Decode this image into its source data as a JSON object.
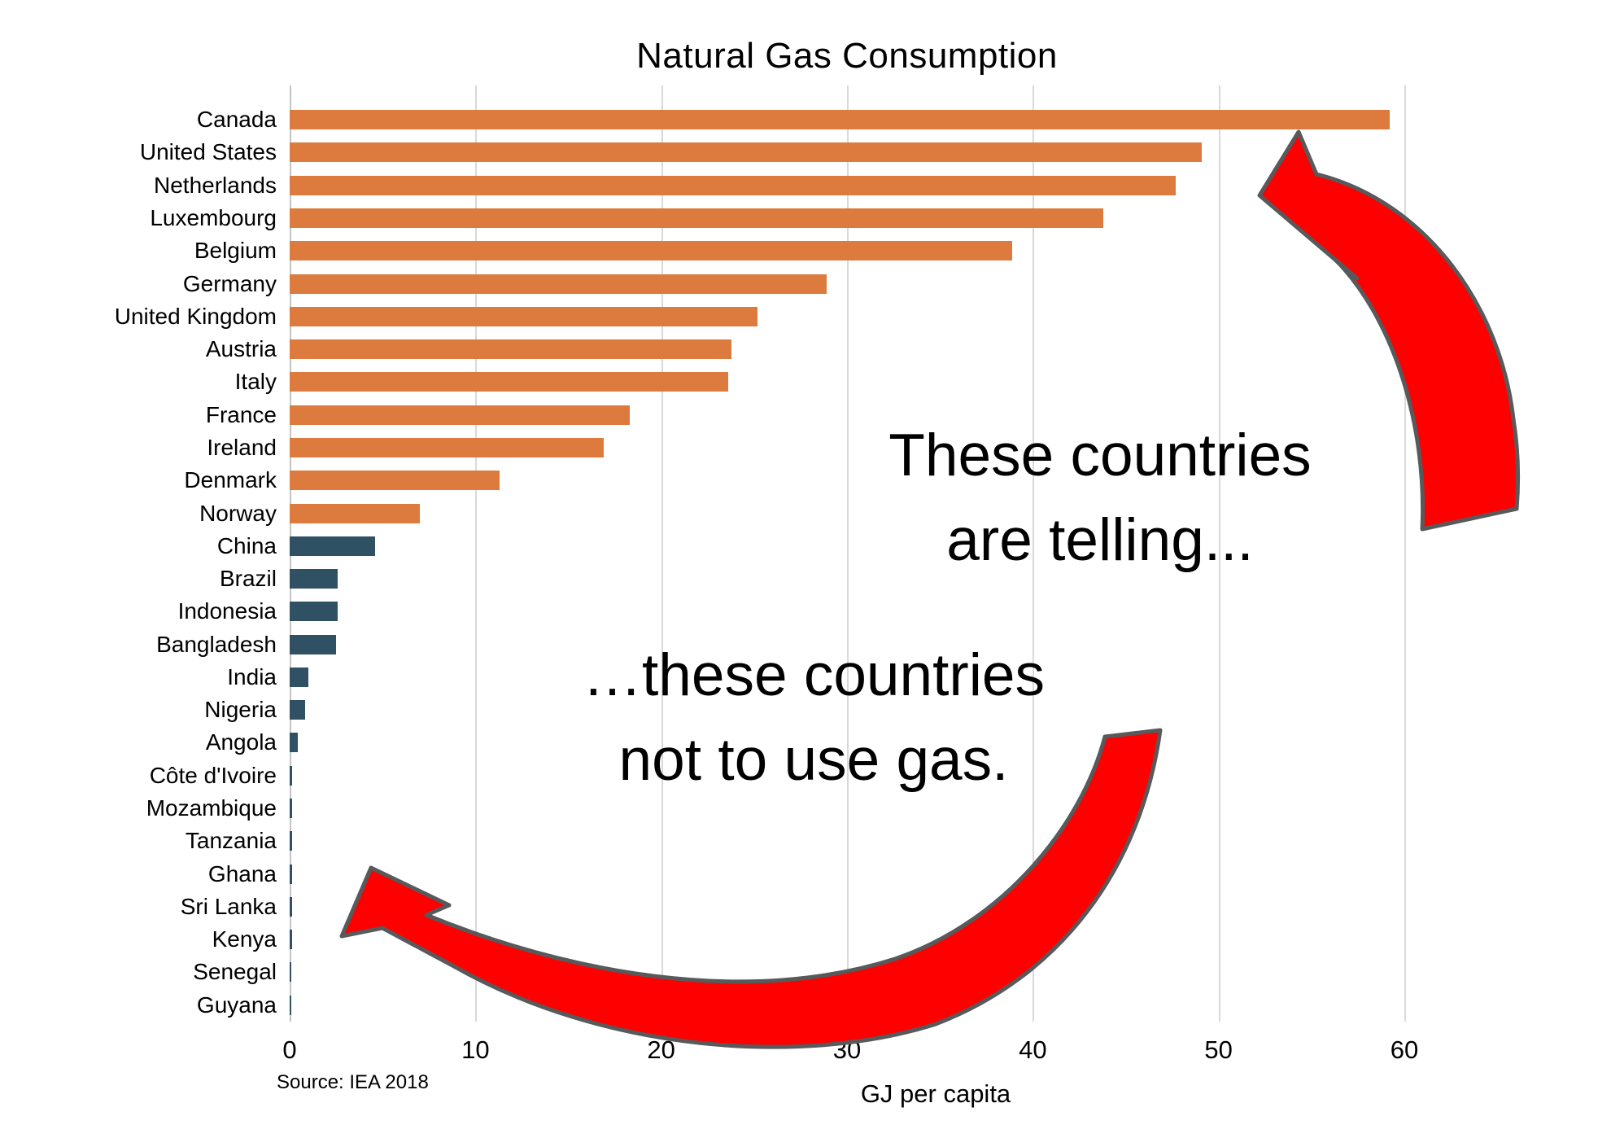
{
  "title": "Natural Gas Consumption",
  "xlabel": "GJ per capita",
  "source": "Source: IEA 2018",
  "annotations": {
    "top_line1": "These countries",
    "top_line2": "are telling...",
    "bottom_line1": "…these countries",
    "bottom_line2": "not to use gas."
  },
  "colors": {
    "advanced_bar": "#dd7b3e",
    "developing_bar": "#305064",
    "arrow_fill": "#ff0000",
    "arrow_outline": "#58595b",
    "gridline": "#d9d9d9"
  },
  "chart_data": {
    "type": "bar",
    "orientation": "horizontal",
    "title": "Natural Gas Consumption",
    "xlabel": "GJ per capita",
    "xlim": [
      0,
      60
    ],
    "xticks": [
      0,
      10,
      20,
      30,
      40,
      50,
      60
    ],
    "grid": "vertical",
    "unit": "GJ per capita",
    "items": [
      {
        "label": "Canada",
        "value": 59.2,
        "group": "advanced"
      },
      {
        "label": "United States",
        "value": 49.1,
        "group": "advanced"
      },
      {
        "label": "Netherlands",
        "value": 47.7,
        "group": "advanced"
      },
      {
        "label": "Luxembourg",
        "value": 43.8,
        "group": "advanced"
      },
      {
        "label": "Belgium",
        "value": 38.9,
        "group": "advanced"
      },
      {
        "label": "Germany",
        "value": 28.9,
        "group": "advanced"
      },
      {
        "label": "United Kingdom",
        "value": 25.2,
        "group": "advanced"
      },
      {
        "label": "Austria",
        "value": 23.8,
        "group": "advanced"
      },
      {
        "label": "Italy",
        "value": 23.6,
        "group": "advanced"
      },
      {
        "label": "France",
        "value": 18.3,
        "group": "advanced"
      },
      {
        "label": "Ireland",
        "value": 16.9,
        "group": "advanced"
      },
      {
        "label": "Denmark",
        "value": 11.3,
        "group": "advanced"
      },
      {
        "label": "Norway",
        "value": 7.0,
        "group": "advanced"
      },
      {
        "label": "China",
        "value": 4.6,
        "group": "developing"
      },
      {
        "label": "Brazil",
        "value": 2.6,
        "group": "developing"
      },
      {
        "label": "Indonesia",
        "value": 2.6,
        "group": "developing"
      },
      {
        "label": "Bangladesh",
        "value": 2.5,
        "group": "developing"
      },
      {
        "label": "India",
        "value": 1.0,
        "group": "developing"
      },
      {
        "label": "Nigeria",
        "value": 0.85,
        "group": "developing"
      },
      {
        "label": "Angola",
        "value": 0.45,
        "group": "developing"
      },
      {
        "label": "Côte d'Ivoire",
        "value": 0.15,
        "group": "developing"
      },
      {
        "label": "Mozambique",
        "value": 0.15,
        "group": "developing"
      },
      {
        "label": "Tanzania",
        "value": 0.15,
        "group": "developing"
      },
      {
        "label": "Ghana",
        "value": 0.15,
        "group": "developing"
      },
      {
        "label": "Sri Lanka",
        "value": 0.12,
        "group": "developing"
      },
      {
        "label": "Kenya",
        "value": 0.12,
        "group": "developing"
      },
      {
        "label": "Senegal",
        "value": 0.1,
        "group": "developing"
      },
      {
        "label": "Guyana",
        "value": 0.1,
        "group": "developing"
      }
    ]
  }
}
